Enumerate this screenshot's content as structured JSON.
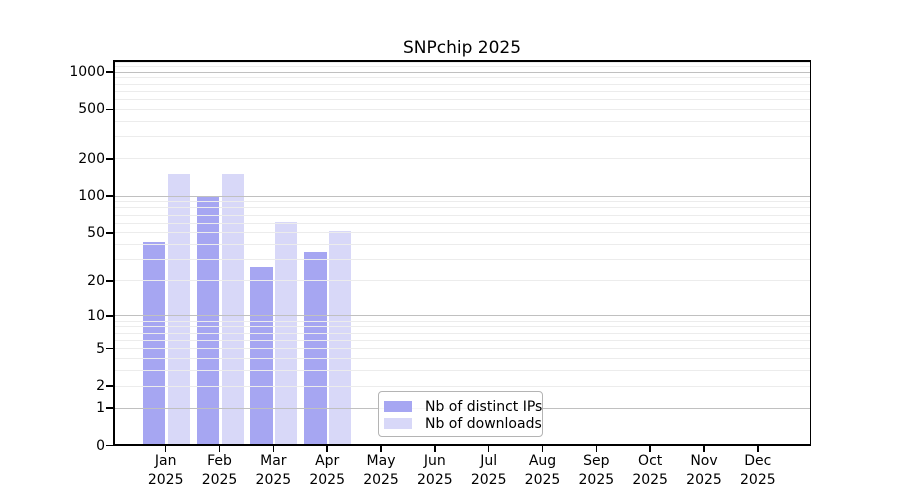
{
  "title": "SNPchip 2025",
  "legend": {
    "items": [
      {
        "label": "Nb of distinct IPs",
        "color": "#a6a6f2"
      },
      {
        "label": "Nb of downloads",
        "color": "#d8d8f8"
      }
    ]
  },
  "chart_data": {
    "type": "bar",
    "title": "SNPchip 2025",
    "categories": [
      {
        "month": "Jan",
        "year": "2025"
      },
      {
        "month": "Feb",
        "year": "2025"
      },
      {
        "month": "Mar",
        "year": "2025"
      },
      {
        "month": "Apr",
        "year": "2025"
      },
      {
        "month": "May",
        "year": "2025"
      },
      {
        "month": "Jun",
        "year": "2025"
      },
      {
        "month": "Jul",
        "year": "2025"
      },
      {
        "month": "Aug",
        "year": "2025"
      },
      {
        "month": "Sep",
        "year": "2025"
      },
      {
        "month": "Oct",
        "year": "2025"
      },
      {
        "month": "Nov",
        "year": "2025"
      },
      {
        "month": "Dec",
        "year": "2025"
      }
    ],
    "series": [
      {
        "name": "Nb of distinct IPs",
        "color": "#a6a6f2",
        "values": [
          42,
          100,
          26,
          35,
          0,
          0,
          0,
          0,
          0,
          0,
          0,
          0
        ]
      },
      {
        "name": "Nb of downloads",
        "color": "#d8d8f8",
        "values": [
          150,
          150,
          62,
          52,
          0,
          0,
          0,
          0,
          0,
          0,
          0,
          0
        ]
      }
    ],
    "yscale": "log10(1+v)",
    "ylim": [
      0,
      1248
    ],
    "yticks": [
      {
        "v": 0,
        "label": "0"
      },
      {
        "v": 1,
        "label": "1"
      },
      {
        "v": 2,
        "label": "2"
      },
      {
        "v": 5,
        "label": "5"
      },
      {
        "v": 10,
        "label": "10"
      },
      {
        "v": 20,
        "label": "20"
      },
      {
        "v": 50,
        "label": "50"
      },
      {
        "v": 100,
        "label": "100"
      },
      {
        "v": 200,
        "label": "200"
      },
      {
        "v": 500,
        "label": "500"
      },
      {
        "v": 1000,
        "label": "1000"
      }
    ],
    "grid": "major-on-powers-of-10, faint minors",
    "legend_position": "lower center"
  },
  "colors": {
    "grid_major": "#c0c0c0",
    "grid_minor": "#ececec",
    "spine": "#000000",
    "background": "#ffffff"
  }
}
